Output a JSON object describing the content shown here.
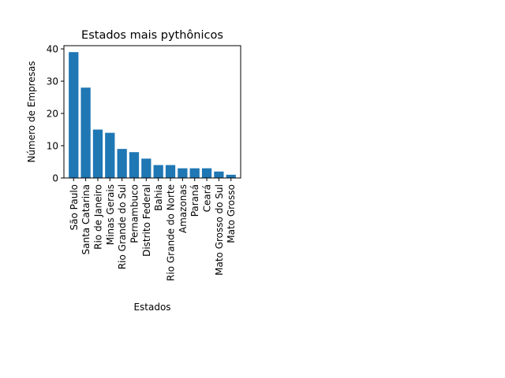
{
  "chart_data": {
    "type": "bar",
    "title": "Estados mais pythônicos",
    "xlabel": "Estados",
    "ylabel": "Número de Empresas",
    "categories": [
      "São Paulo",
      "Santa Catarina",
      "Rio de Janeiro",
      "Minas Gerais",
      "Rio Grande do Sul",
      "Pernambuco",
      "Distrito Federal",
      "Bahia",
      "Rio Grande do Norte",
      "Amazonas",
      "Paraná",
      "Ceará",
      "Mato Grosso do Sul",
      "Mato Grosso"
    ],
    "values": [
      39,
      28,
      15,
      14,
      9,
      8,
      6,
      4,
      4,
      3,
      3,
      3,
      2,
      1
    ],
    "ylim": [
      0,
      41
    ],
    "yticks": [
      0,
      10,
      20,
      30,
      40
    ],
    "grid": false,
    "bar_color": "#1f77b4"
  }
}
